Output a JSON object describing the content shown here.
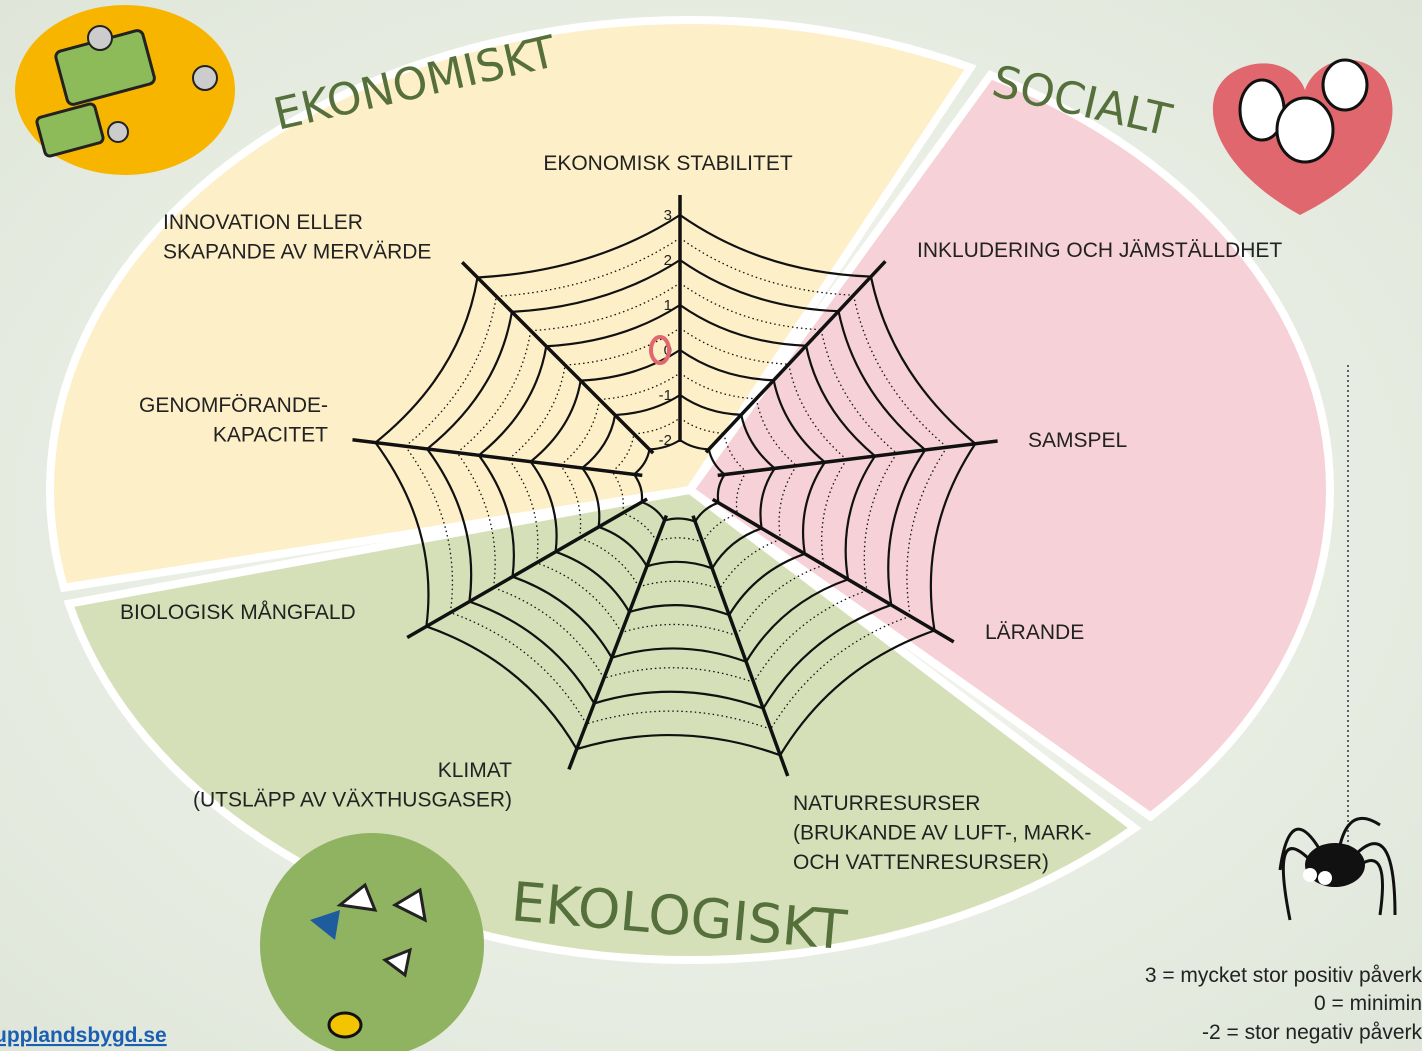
{
  "sections": {
    "economic": "EKONOMISKT",
    "social": "SOCIALT",
    "ecological": "EKOLOGISKT"
  },
  "axes": [
    {
      "label": [
        "EKONOMISK STABILITET"
      ]
    },
    {
      "label": [
        "INKLUDERING OCH JÄMSTÄLLDHET"
      ]
    },
    {
      "label": [
        "SAMSPEL"
      ]
    },
    {
      "label": [
        "LÄRANDE"
      ]
    },
    {
      "label": [
        "NATURRESURSER",
        "(BRUKANDE AV LUFT-, MARK-",
        "OCH VATTENRESURSER)"
      ]
    },
    {
      "label": [
        "KLIMAT",
        "(UTSLÄPP AV VÄXTHUSGASER)"
      ]
    },
    {
      "label": [
        "BIOLOGISK MÅNGFALD"
      ]
    },
    {
      "label": [
        "GENOMFÖRANDE-",
        "KAPACITET"
      ]
    },
    {
      "label": [
        "INNOVATION ELLER",
        "SKAPANDE AV MERVÄRDE"
      ]
    }
  ],
  "scale": [
    3,
    2,
    1,
    0,
    -1,
    -2
  ],
  "legend": [
    "3 = mycket stor positiv påverk",
    "0 = minimin",
    "-2 = stor negativ påverk"
  ],
  "link": "upplandsbygd.se"
}
